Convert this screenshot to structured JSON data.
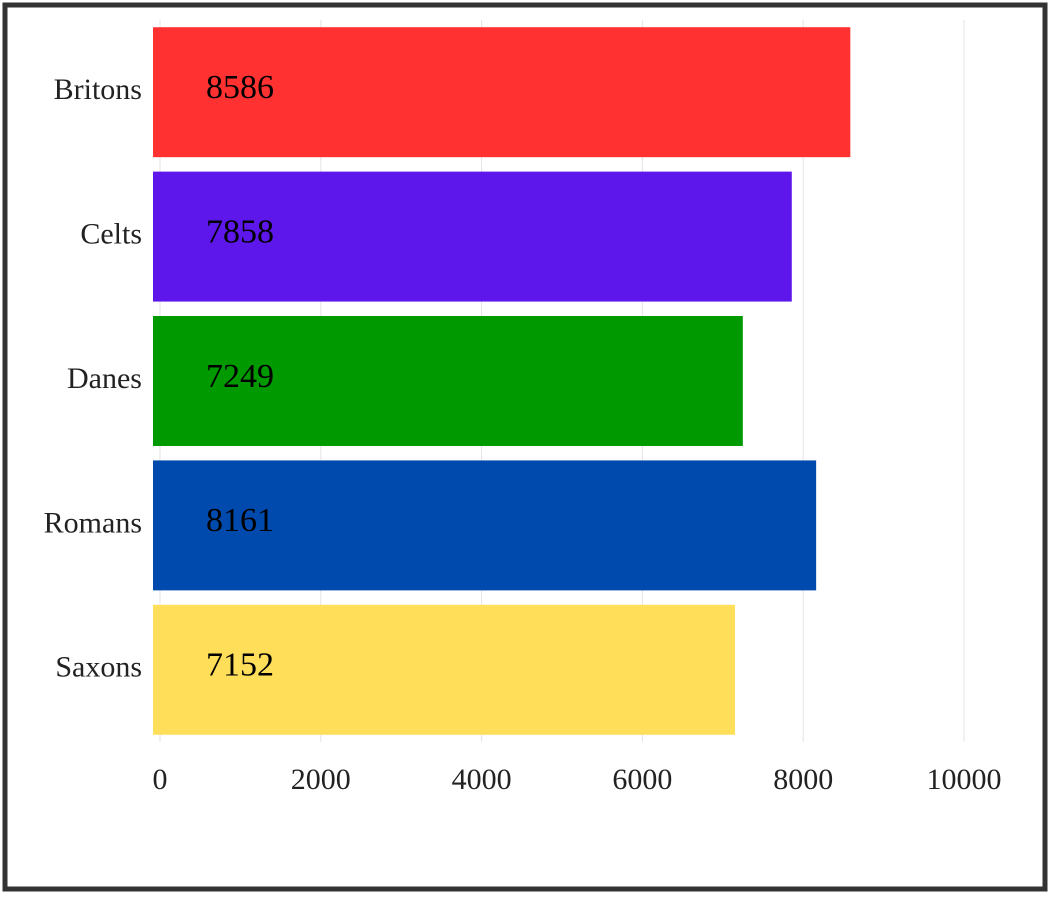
{
  "chart_data": {
    "type": "bar",
    "orientation": "horizontal",
    "categories": [
      "Britons",
      "Celts",
      "Danes",
      "Romans",
      "Saxons"
    ],
    "values": [
      8586,
      7858,
      7249,
      8161,
      7152
    ],
    "colors": [
      "#ff3131",
      "#5e17eb",
      "#009900",
      "#004aad",
      "#ffde59"
    ],
    "xlim": [
      0,
      10000
    ],
    "xticks": [
      0,
      2000,
      4000,
      6000,
      8000,
      10000
    ],
    "grid": true
  }
}
